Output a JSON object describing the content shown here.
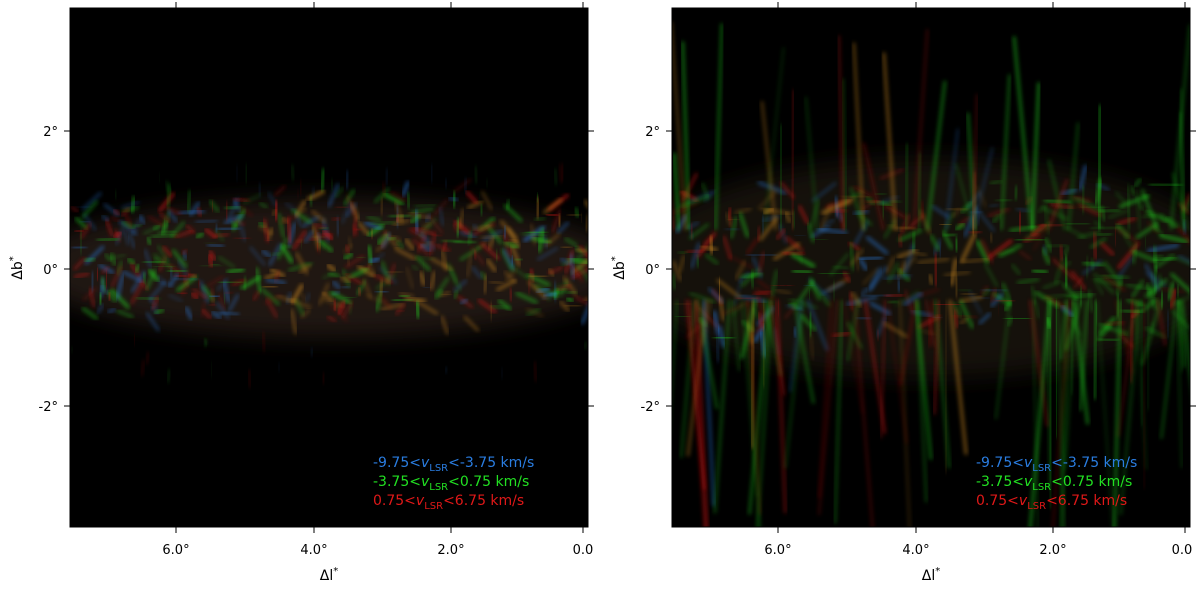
{
  "panels": [
    {
      "id": "left",
      "xticks": [
        "6.0°",
        "4.0°",
        "2.0°",
        "0.0"
      ],
      "yticks": [
        "2°",
        "0°",
        "-2°"
      ],
      "xlabel_base": "Δl",
      "xlabel_sup": "*",
      "ylabel_base": "Δb",
      "ylabel_sup": "*",
      "legend": [
        {
          "pre": "-9.75<",
          "v": "v",
          "sub": "LSR",
          "post": "<-3.75 km/s",
          "color": "#2a7de1"
        },
        {
          "pre": "-3.75<",
          "v": "v",
          "sub": "LSR",
          "post": "<0.75 km/s",
          "color": "#22e022"
        },
        {
          "pre": "0.75<",
          "v": "v",
          "sub": "LSR",
          "post": "<6.75 km/s",
          "color": "#e01818"
        }
      ]
    },
    {
      "id": "right",
      "xticks": [
        "6.0°",
        "4.0°",
        "2.0°",
        "0.0"
      ],
      "yticks": [
        "2°",
        "0°",
        "-2°"
      ],
      "xlabel_base": "Δl",
      "xlabel_sup": "*",
      "ylabel_base": "Δb",
      "ylabel_sup": "*",
      "legend": [
        {
          "pre": "-9.75<",
          "v": "v",
          "sub": "LSR",
          "post": "<-3.75 km/s",
          "color": "#2a7de1"
        },
        {
          "pre": "-3.75<",
          "v": "v",
          "sub": "LSR",
          "post": "<0.75 km/s",
          "color": "#22e022"
        },
        {
          "pre": "0.75<",
          "v": "v",
          "sub": "LSR",
          "post": "<6.75 km/s",
          "color": "#e01818"
        }
      ]
    }
  ],
  "colors": {
    "background": "#000000",
    "blue": "#2a7de1",
    "green": "#22e022",
    "red": "#e01818"
  }
}
